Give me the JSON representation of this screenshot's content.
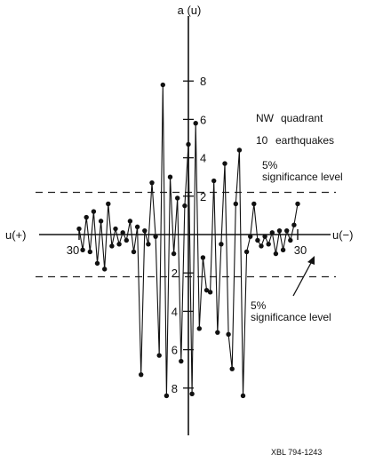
{
  "chart_data": {
    "type": "line",
    "title": "",
    "ylabel": "a (u)",
    "xlabel_left": "u(+)",
    "xlabel_right": "u(−)",
    "x_tick_labels": {
      "left": "30",
      "right": "30"
    },
    "y_tick_labels": {
      "upper": [
        "2",
        "4",
        "6",
        "8"
      ],
      "lower": [
        "2",
        "4",
        "6",
        "8"
      ]
    },
    "xlim": [
      -37,
      37
    ],
    "ylim": [
      -9.5,
      9.5
    ],
    "legend": {
      "line1_a": "NW",
      "line1_b": "quadrant",
      "line2_a": "10",
      "line2_b": "earthquakes"
    },
    "significance": {
      "level": 2.2,
      "label_top": "5%",
      "label_bottom": "significance level"
    },
    "reference_code": "XBL 794-1243",
    "series": [
      {
        "x": [
          -30,
          -29,
          -28,
          -27,
          -26,
          -25,
          -24,
          -23,
          -22,
          -21,
          -20,
          -19,
          -18,
          -17,
          -16,
          -15,
          -14,
          -13,
          -12,
          -11,
          -10,
          -9,
          -8,
          -7,
          -6,
          -5,
          -4,
          -3,
          -2,
          -1,
          0,
          1,
          2,
          3,
          4,
          5,
          6,
          7,
          8,
          9,
          10,
          11,
          12,
          13,
          14,
          15,
          16,
          17,
          18,
          19,
          20,
          21,
          22,
          23,
          24,
          25,
          26,
          27,
          28,
          29,
          30
        ],
        "y": [
          0.3,
          -0.8,
          0.9,
          -0.9,
          1.2,
          -1.5,
          0.7,
          -1.8,
          1.6,
          -0.6,
          0.3,
          -0.5,
          0.1,
          -0.3,
          0.7,
          -0.9,
          0.4,
          -7.3,
          0.2,
          -0.5,
          2.7,
          -0.1,
          -6.3,
          7.8,
          -8.4,
          3.0,
          -1.0,
          1.9,
          -6.6,
          1.5,
          4.7,
          -8.3,
          5.8,
          -4.9,
          -1.2,
          -2.9,
          -3.0,
          2.8,
          -5.1,
          -0.5,
          3.7,
          -5.2,
          -7.0,
          1.6,
          4.4,
          -8.4,
          -0.9,
          -0.1,
          1.6,
          -0.3,
          -0.6,
          -0.1,
          -0.5,
          0.1,
          -1.0,
          0.2,
          -0.8,
          0.2,
          -0.3,
          0.5,
          1.6
        ]
      }
    ]
  }
}
